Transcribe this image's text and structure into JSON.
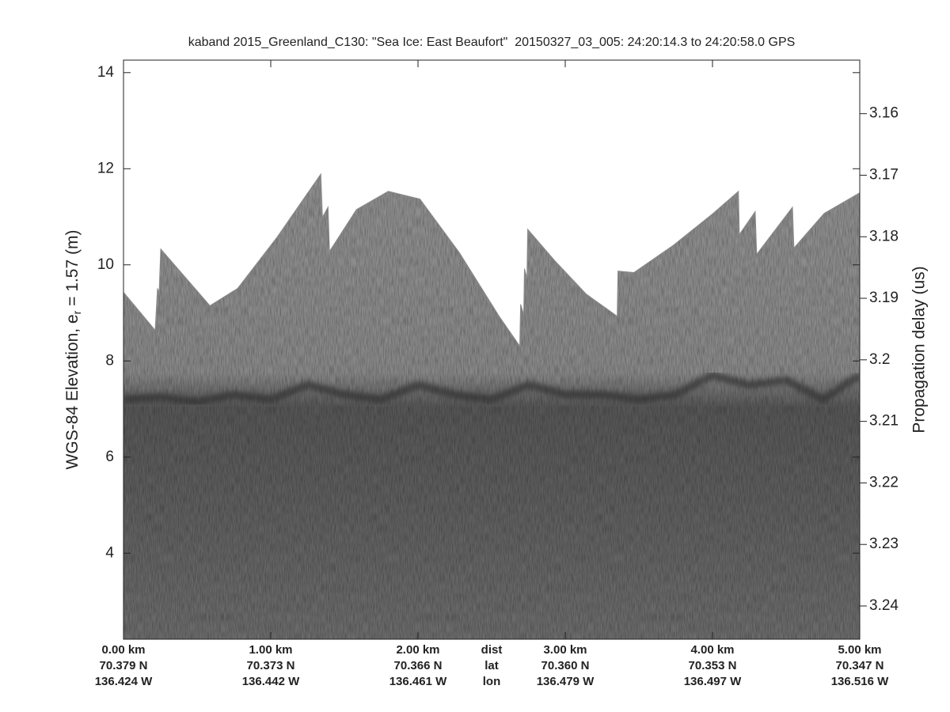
{
  "chart_data": {
    "type": "echogram",
    "title": "kaband 2015_Greenland_C130: \"Sea Ice: East Beaufort\"  20150327_03_005: 24:20:14.3 to 24:20:58.0 GPS",
    "ylabel": {
      "main": "WGS-84 Elevation, e",
      "subscript": "r",
      "rest": " = 1.57 (m)"
    },
    "y2label": "Propagation delay (us)",
    "xlim": [
      0,
      5
    ],
    "ylim": [
      2.21,
      14.26
    ],
    "y2lim": [
      3.2454,
      3.1513
    ],
    "yticks": [
      4,
      6,
      8,
      10,
      12,
      14
    ],
    "y2ticks": [
      3.16,
      3.17,
      3.18,
      3.19,
      3.2,
      3.21,
      3.22,
      3.23,
      3.24
    ],
    "xticks": [
      {
        "value": 0,
        "label": "0.00 km"
      },
      {
        "value": 1,
        "label": "1.00 km"
      },
      {
        "value": 2,
        "label": "2.00 km"
      },
      {
        "value": 3,
        "label": "3.00 km"
      },
      {
        "value": 4,
        "label": "4.00 km"
      },
      {
        "value": 5,
        "label": "5.00 km"
      }
    ],
    "lat_labels": [
      "70.379 N",
      "70.373 N",
      "70.366 N",
      "70.360 N",
      "70.353 N",
      "70.347 N"
    ],
    "lon_labels": [
      "136.424 W",
      "136.442 W",
      "136.461 W",
      "136.479 W",
      "136.497 W",
      "136.516 W"
    ],
    "row_labels": [
      "dist",
      "lat",
      "lon"
    ],
    "row_label_position": 2.5,
    "series": [
      {
        "color": "#8c8c8c",
        "x": [
          0,
          0.215,
          0.231,
          0.242,
          0.253,
          0.587,
          0.775,
          1.044,
          1.34,
          1.351,
          1.389,
          1.399,
          1.582,
          1.798,
          2.013,
          2.282,
          2.551,
          2.691,
          2.697,
          2.718,
          2.723,
          2.74,
          2.745,
          2.928,
          3.143,
          3.353,
          3.358,
          3.466,
          3.735,
          4.004,
          4.176,
          4.182,
          4.29,
          4.3,
          4.543,
          4.553,
          4.758,
          5
        ],
        "values": [
          9.43,
          8.64,
          9.51,
          9.43,
          10.33,
          9.15,
          9.51,
          10.58,
          11.89,
          10.99,
          11.2,
          10.28,
          11.15,
          11.53,
          11.37,
          10.25,
          8.93,
          8.31,
          9.18,
          8.97,
          9.92,
          9.72,
          10.74,
          10.09,
          9.39,
          8.93,
          9.87,
          9.84,
          10.41,
          11.07,
          11.53,
          10.63,
          11.11,
          10.22,
          11.2,
          10.35,
          11.07,
          11.5
        ]
      },
      {
        "color": "#2e2e2e",
        "x": [
          0,
          0.25,
          0.5,
          0.75,
          1,
          1.25,
          1.5,
          1.75,
          2,
          2.25,
          2.5,
          2.75,
          3,
          3.25,
          3.5,
          3.75,
          4,
          4.25,
          4.5,
          4.75,
          5
        ],
        "values": [
          7.2,
          7.25,
          7.15,
          7.3,
          7.2,
          7.5,
          7.3,
          7.2,
          7.5,
          7.3,
          7.2,
          7.5,
          7.3,
          7.3,
          7.2,
          7.3,
          7.7,
          7.5,
          7.6,
          7.2,
          7.7
        ]
      }
    ]
  }
}
